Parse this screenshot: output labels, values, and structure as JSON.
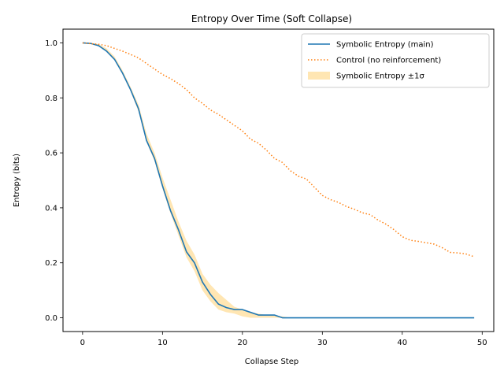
{
  "chart_data": {
    "type": "line",
    "title": "Entropy Over Time (Soft Collapse)",
    "xlabel": "Collapse Step",
    "ylabel": "Entropy (bits)",
    "xlim": [
      -2.45,
      51.45
    ],
    "ylim": [
      -0.05,
      1.05
    ],
    "xticks": [
      0,
      10,
      20,
      30,
      40,
      50
    ],
    "yticks": [
      0.0,
      0.2,
      0.4,
      0.6,
      0.8,
      1.0
    ],
    "xtick_labels": [
      "0",
      "10",
      "20",
      "30",
      "40",
      "50"
    ],
    "ytick_labels": [
      "0.0",
      "0.2",
      "0.4",
      "0.6",
      "0.8",
      "1.0"
    ],
    "grid": false,
    "legend_position": "upper right",
    "x": [
      0,
      1,
      2,
      3,
      4,
      5,
      6,
      7,
      8,
      9,
      10,
      11,
      12,
      13,
      14,
      15,
      16,
      17,
      18,
      19,
      20,
      21,
      22,
      23,
      24,
      25,
      26,
      27,
      28,
      29,
      30,
      31,
      32,
      33,
      34,
      35,
      36,
      37,
      38,
      39,
      40,
      41,
      42,
      43,
      44,
      45,
      46,
      47,
      48,
      49
    ],
    "series": [
      {
        "name": "Symbolic Entropy (main)",
        "color": "#1f77b4",
        "style": "solid",
        "values": [
          1.0,
          0.998,
          0.99,
          0.97,
          0.94,
          0.89,
          0.83,
          0.76,
          0.645,
          0.58,
          0.48,
          0.39,
          0.32,
          0.24,
          0.2,
          0.13,
          0.085,
          0.05,
          0.037,
          0.03,
          0.03,
          0.02,
          0.01,
          0.01,
          0.01,
          0.0,
          0.0,
          0.0,
          0.0,
          0.0,
          0.0,
          0.0,
          0.0,
          0.0,
          0.0,
          0.0,
          0.0,
          0.0,
          0.0,
          0.0,
          0.0,
          0.0,
          0.0,
          0.0,
          0.0,
          0.0,
          0.0,
          0.0,
          0.0,
          0.0
        ]
      },
      {
        "name": "Control (no reinforcement)",
        "color": "#ff7f0e",
        "style": "dotted",
        "values": [
          1.0,
          0.997,
          0.995,
          0.99,
          0.98,
          0.97,
          0.958,
          0.945,
          0.925,
          0.905,
          0.885,
          0.87,
          0.852,
          0.83,
          0.8,
          0.78,
          0.756,
          0.74,
          0.72,
          0.7,
          0.68,
          0.65,
          0.635,
          0.61,
          0.58,
          0.565,
          0.535,
          0.515,
          0.505,
          0.475,
          0.445,
          0.43,
          0.42,
          0.405,
          0.395,
          0.382,
          0.375,
          0.355,
          0.34,
          0.32,
          0.295,
          0.282,
          0.278,
          0.273,
          0.268,
          0.255,
          0.238,
          0.236,
          0.232,
          0.222
        ]
      }
    ],
    "bands": [
      {
        "name": "Symbolic Entropy ±1σ",
        "color": "#ffe6b3",
        "lower": [
          1.0,
          0.998,
          0.99,
          0.97,
          0.94,
          0.885,
          0.825,
          0.75,
          0.64,
          0.57,
          0.47,
          0.38,
          0.3,
          0.22,
          0.17,
          0.1,
          0.06,
          0.03,
          0.02,
          0.015,
          0.005,
          0.0,
          0.0,
          0.0,
          0.0,
          0.0,
          0.0,
          0.0,
          0.0,
          0.0,
          0.0,
          0.0,
          0.0,
          0.0,
          0.0,
          0.0,
          0.0,
          0.0,
          0.0,
          0.0,
          0.0,
          0.0,
          0.0,
          0.0,
          0.0,
          0.0,
          0.0,
          0.0,
          0.0,
          0.0
        ],
        "upper": [
          1.0,
          1.0,
          0.995,
          0.98,
          0.95,
          0.9,
          0.84,
          0.775,
          0.67,
          0.6,
          0.51,
          0.43,
          0.35,
          0.28,
          0.23,
          0.16,
          0.12,
          0.09,
          0.065,
          0.04,
          0.03,
          0.02,
          0.015,
          0.01,
          0.008,
          0.005,
          0.0,
          0.0,
          0.0,
          0.0,
          0.0,
          0.0,
          0.0,
          0.0,
          0.0,
          0.0,
          0.0,
          0.0,
          0.0,
          0.0,
          0.0,
          0.0,
          0.0,
          0.0,
          0.0,
          0.0,
          0.0,
          0.0,
          0.0,
          0.0
        ]
      }
    ]
  }
}
